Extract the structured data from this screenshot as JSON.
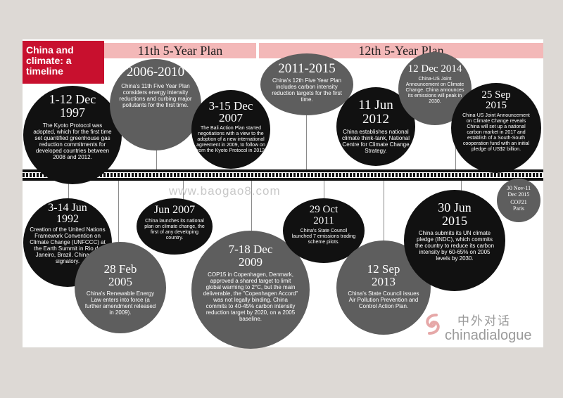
{
  "title": "China and climate: a timeline",
  "plans": {
    "p11": "11th 5-Year Plan",
    "p12": "12th 5-Year Plan"
  },
  "watermark": "www.baogao8.com",
  "logo": {
    "chinese": "中外对话",
    "english": "chinadialogue"
  },
  "events": {
    "e1997": {
      "date": "1-12 Dec 1997",
      "text": "The Kyoto Protocol was adopted, which for the first time set quantified greenhouse gas reduction commitments for developed countries between 2008 and 2012."
    },
    "e2006": {
      "date": "2006-2010",
      "text": "China's 11th Five Year Plan considers energy intensity reductions and curbing major pollutants for the first time."
    },
    "e2007b": {
      "date": "3-15 Dec 2007",
      "text": "The Bali Action Plan started negotiations with a view to the adoption of a new international agreement in 2009, to follow on from the Kyoto Protocol in 2012."
    },
    "e2011": {
      "date": "2011-2015",
      "text": "China's 12th Five Year Plan includes carbon intensity reduction targets for the first time."
    },
    "e2012": {
      "date": "11 Jun 2012",
      "text": "China establishes national climate think-tank, National Centre for Climate Change Strategy."
    },
    "e2014": {
      "date": "12 Dec 2014",
      "text": "China-US Joint Announcement on Climate Change. China announces its emissions will peak in 2030."
    },
    "e2015s": {
      "date": "25 Sep 2015",
      "text": "China-US Joint Announcement on Climate Change reveals China will set up a national carbon market in 2017 and establish of a South-South cooperation fund with an initial pledge of US$2 billion."
    },
    "e1992": {
      "date": "3-14 Jun 1992",
      "text": "Creation of the United Nations Framework Convention on Climate Change (UNFCCC) at the Earth Summit in Rio de Janeiro, Brazil. China is a signatory."
    },
    "e2005": {
      "date": "28 Feb 2005",
      "text": "China's Renewable Energy Law enters into force (a further amendment released in 2009)."
    },
    "e2007j": {
      "date": "Jun 2007",
      "text": "China launches its national plan on climate change, the first of any developing country."
    },
    "e2009": {
      "date": "7-18 Dec 2009",
      "text": "COP15 in Copenhagen, Denmark, approved a shared target to limit global warming to 2°C, but the main deliverable, the \"Copenhagen Accord\" was not legally binding. China commits to 40-45% carbon intensity reduction target by 2020, on a 2005 baseline."
    },
    "e2011o": {
      "date": "29 Oct 2011",
      "text": "China's State Council launched 7 emissions trading scheme pilots."
    },
    "e2013": {
      "date": "12 Sep 2013",
      "text": "China's State Council issues Air Pollution Prevention and Control Action Plan."
    },
    "e2015j": {
      "date": "30 Jun 2015",
      "text": "China submits its UN climate pledge (INDC), which commits the country to reduce its carbon intensity by 60-65% on 2005 levels by 2030."
    },
    "e2015n": {
      "date": "30 Nov-11 Dec 2015",
      "text": "COP21 Paris"
    }
  }
}
